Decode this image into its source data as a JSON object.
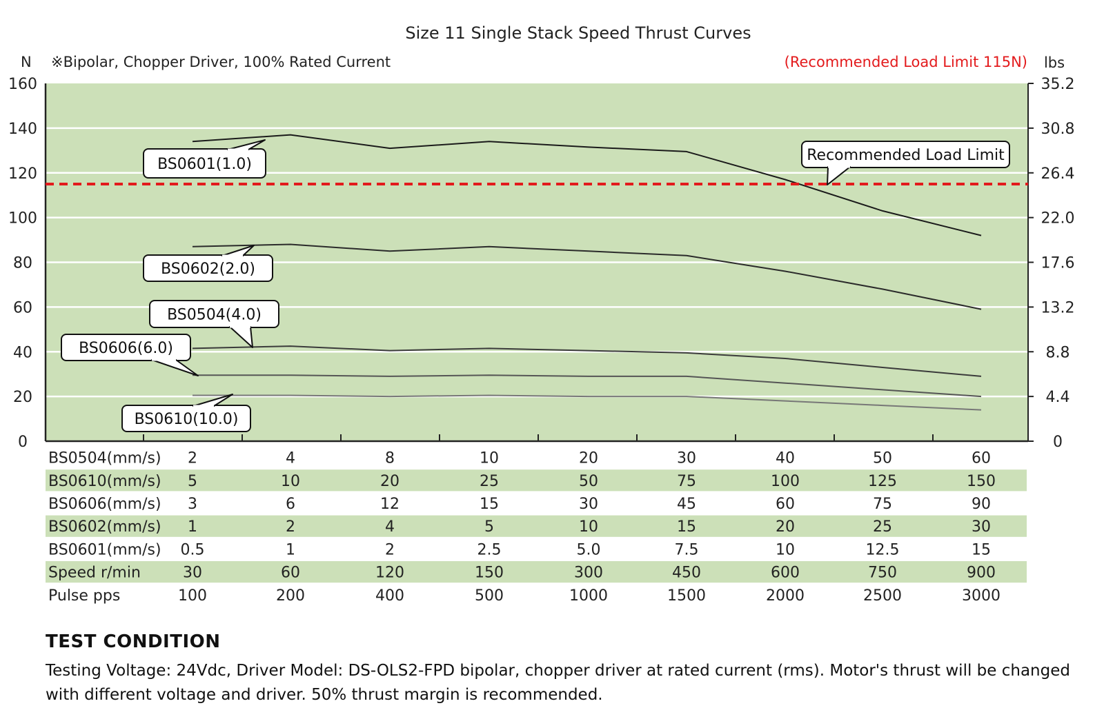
{
  "chart_data": {
    "type": "line",
    "title": "Size 11 Single Stack Speed Thrust Curves",
    "subtitle": "※Bipolar, Chopper Driver, 100% Rated Current",
    "recommended_note": "(Recommended Load Limit 115N)",
    "left_unit": "N",
    "right_unit": "lbs",
    "ylim": [
      0,
      160
    ],
    "y_ticks": [
      0,
      20,
      40,
      60,
      80,
      100,
      120,
      140,
      160
    ],
    "y_tick_labels": [
      "0",
      "20",
      "40",
      "60",
      "80",
      "100",
      "120",
      "140",
      "160"
    ],
    "right_ylim": [
      0,
      35.2
    ],
    "right_ticks": [
      0,
      4.4,
      8.8,
      13.2,
      17.6,
      22.0,
      26.4,
      30.8,
      35.2
    ],
    "right_tick_labels": [
      "0",
      "4.4",
      "8.8",
      "13.2",
      "17.6",
      "22.0",
      "26.4",
      "30.8",
      "35.2"
    ],
    "grid": true,
    "background_color": "#cce0b8",
    "line_color": "#1a1a1a",
    "limit_color": "#e31a1c",
    "load_limit": {
      "value": 115,
      "label": "Recommended Load Limit"
    },
    "series": [
      {
        "name": "BS0601(1.0)",
        "color": "#1a1a1a",
        "values": [
          134,
          137,
          131,
          134,
          131.5,
          129.5,
          117,
          103,
          92
        ]
      },
      {
        "name": "BS0602(2.0)",
        "color": "#2a2a2a",
        "values": [
          87,
          88,
          85,
          87,
          85,
          83,
          76,
          68,
          59
        ]
      },
      {
        "name": "BS0504(4.0)",
        "color": "#3a3a3a",
        "values": [
          41.5,
          42.5,
          40.5,
          41.5,
          40.5,
          39.5,
          37,
          33,
          29
        ]
      },
      {
        "name": "BS0606(6.0)",
        "color": "#555555",
        "values": [
          29.5,
          29.5,
          29,
          29.5,
          29,
          29,
          26,
          23,
          20
        ]
      },
      {
        "name": "BS0610(10.0)",
        "color": "#777777",
        "values": [
          20.5,
          20.5,
          20,
          20.5,
          20,
          20,
          18,
          16,
          14
        ]
      }
    ],
    "table": {
      "rows": [
        {
          "label": "BS0504(mm/s)",
          "shaded": false,
          "values": [
            "2",
            "4",
            "8",
            "10",
            "20",
            "30",
            "40",
            "50",
            "60"
          ]
        },
        {
          "label": "BS0610(mm/s)",
          "shaded": true,
          "values": [
            "5",
            "10",
            "20",
            "25",
            "50",
            "75",
            "100",
            "125",
            "150"
          ]
        },
        {
          "label": "BS0606(mm/s)",
          "shaded": false,
          "values": [
            "3",
            "6",
            "12",
            "15",
            "30",
            "45",
            "60",
            "75",
            "90"
          ]
        },
        {
          "label": "BS0602(mm/s)",
          "shaded": true,
          "values": [
            "1",
            "2",
            "4",
            "5",
            "10",
            "15",
            "20",
            "25",
            "30"
          ]
        },
        {
          "label": "BS0601(mm/s)",
          "shaded": false,
          "values": [
            "0.5",
            "1",
            "2",
            "2.5",
            "5.0",
            "7.5",
            "10",
            "12.5",
            "15"
          ]
        },
        {
          "label": "Speed r/min",
          "shaded": true,
          "values": [
            "30",
            "60",
            "120",
            "150",
            "300",
            "450",
            "600",
            "750",
            "900"
          ]
        },
        {
          "label": "Pulse  pps",
          "shaded": false,
          "values": [
            "100",
            "200",
            "400",
            "500",
            "1000",
            "1500",
            "2000",
            "2500",
            "3000"
          ]
        }
      ]
    }
  },
  "test_condition": {
    "title": "TEST CONDITION",
    "text": "Testing Voltage: 24Vdc, Driver Model: DS-OLS2-FPD bipolar, chopper driver at rated current (rms). Motor's thrust will be changed with different voltage and driver. 50% thrust margin is recommended."
  }
}
